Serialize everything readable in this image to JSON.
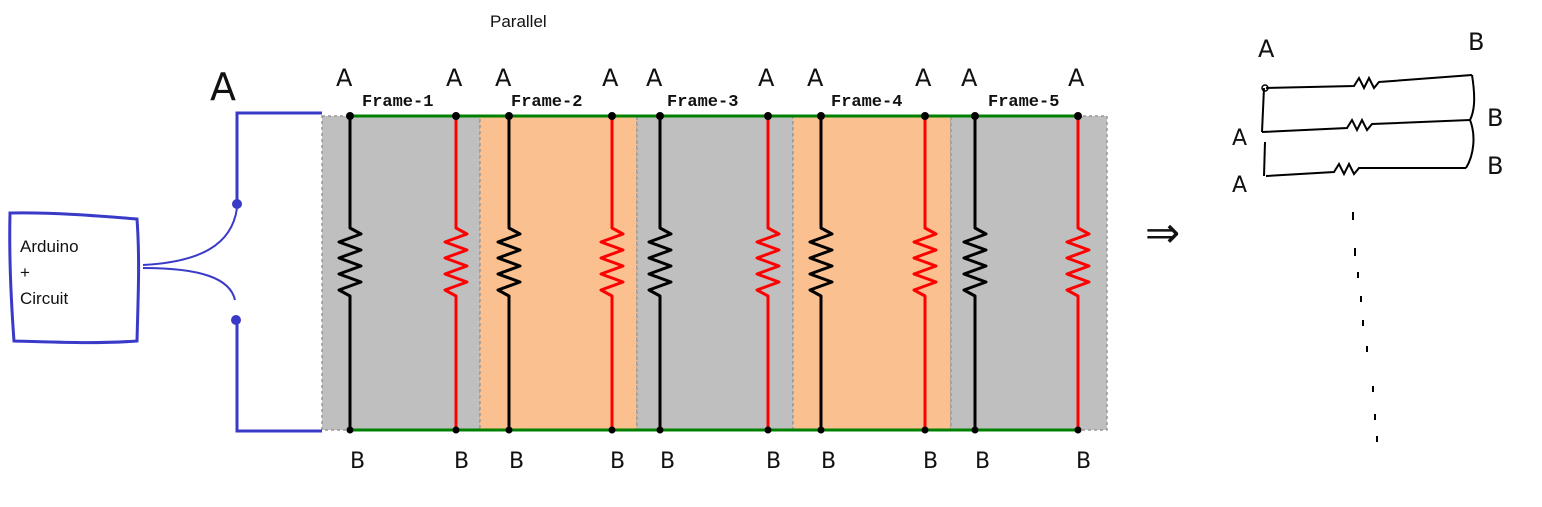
{
  "title": "Parallel",
  "source_box": {
    "line1": "Arduino",
    "line2": "+",
    "line3": "Circuit"
  },
  "left_label": "A",
  "frames": [
    {
      "label": "Frame-1",
      "top_left": "A",
      "top_right": "A",
      "bottom_left": "B",
      "bottom_right": "B",
      "fill": "#bfbfbf"
    },
    {
      "label": "Frame-2",
      "top_left": "A",
      "top_right": "A",
      "bottom_left": "B",
      "bottom_right": "B",
      "fill": "#fac090"
    },
    {
      "label": "Frame-3",
      "top_left": "A",
      "top_right": "A",
      "bottom_left": "B",
      "bottom_right": "B",
      "fill": "#bfbfbf"
    },
    {
      "label": "Frame-4",
      "top_left": "A",
      "top_right": "A",
      "bottom_left": "B",
      "bottom_right": "B",
      "fill": "#fac090"
    },
    {
      "label": "Frame-5",
      "top_left": "A",
      "top_right": "A",
      "bottom_left": "B",
      "bottom_right": "B",
      "fill": "#bfbfbf"
    }
  ],
  "equivalent": {
    "arrow": "⇒",
    "rows": [
      {
        "left": "A",
        "right": "B"
      },
      {
        "left": "A",
        "right": "B"
      },
      {
        "left": "A",
        "right": "B"
      }
    ]
  },
  "colors": {
    "wire_blue": "#3a3ac8",
    "rail_green": "#008000",
    "black_resistor": "#000000",
    "red_resistor": "#ff0000",
    "frame_border": "#999999"
  }
}
